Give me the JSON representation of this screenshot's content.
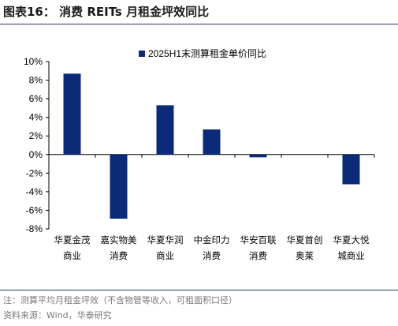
{
  "header": {
    "title": "图表16：  消费 REITs 月租金坪效同比"
  },
  "footer": {
    "note": "注：测算平均月租金坪效（不含物管等收入，可租面积口径）",
    "source": "资料来源：Wind，华泰研究"
  },
  "colors": {
    "bar": "#0b2a78",
    "axis": "#000000",
    "rule": "#2a3a6b"
  },
  "chart_data": {
    "type": "bar",
    "title": "",
    "xlabel": "",
    "ylabel": "",
    "ylim": [
      -8,
      10
    ],
    "yticks": [
      10,
      8,
      6,
      4,
      2,
      0,
      -2,
      -4,
      -6,
      -8
    ],
    "ytick_labels": [
      "10%",
      "8%",
      "6%",
      "4%",
      "2%",
      "0%",
      "-2%",
      "-4%",
      "-6%",
      "-8%"
    ],
    "grid": false,
    "legend_position": "top",
    "categories": [
      [
        "华夏金茂",
        "商业"
      ],
      [
        "嘉实物美",
        "消费"
      ],
      [
        "华夏华润",
        "商业"
      ],
      [
        "中金印力",
        "消费"
      ],
      [
        "华安百联",
        "消费"
      ],
      [
        "华夏首创",
        "奥莱"
      ],
      [
        "华夏大悦",
        "城商业"
      ]
    ],
    "series": [
      {
        "name": "2025H1末测算租金单价同比",
        "values": [
          8.7,
          -6.9,
          5.3,
          2.7,
          -0.3,
          0.0,
          -3.2
        ]
      }
    ]
  }
}
